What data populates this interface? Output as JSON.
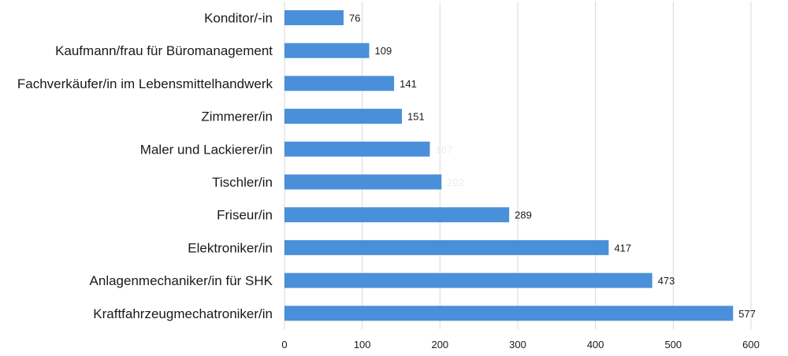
{
  "chart_data": {
    "type": "bar",
    "orientation": "horizontal",
    "categories": [
      "Konditor/-in",
      "Kaufmann/frau für Büromanagement",
      "Fachverkäufer/in im Lebensmittelhandwerk",
      "Zimmerer/in",
      "Maler und Lackierer/in",
      "Tischler/in",
      "Friseur/in",
      "Elektroniker/in",
      "Anlagenmechaniker/in für SHK",
      "Kraftfahrzeugmechatroniker/in"
    ],
    "values": [
      76,
      109,
      141,
      151,
      187,
      202,
      289,
      417,
      473,
      577
    ],
    "value_label_visibility": [
      "normal",
      "normal",
      "normal",
      "normal",
      "faint",
      "faint",
      "normal",
      "normal",
      "normal",
      "normal"
    ],
    "xlim": [
      0,
      600
    ],
    "xticks": [
      0,
      100,
      200,
      300,
      400,
      500,
      600
    ],
    "title": "",
    "xlabel": "",
    "ylabel": "",
    "grid": "vertical",
    "legend": "none",
    "colors": {
      "bar": "#4a8fd9",
      "grid": "#d9d9d9",
      "text": "#1a1a1a",
      "faint_label": "#ececec"
    }
  }
}
